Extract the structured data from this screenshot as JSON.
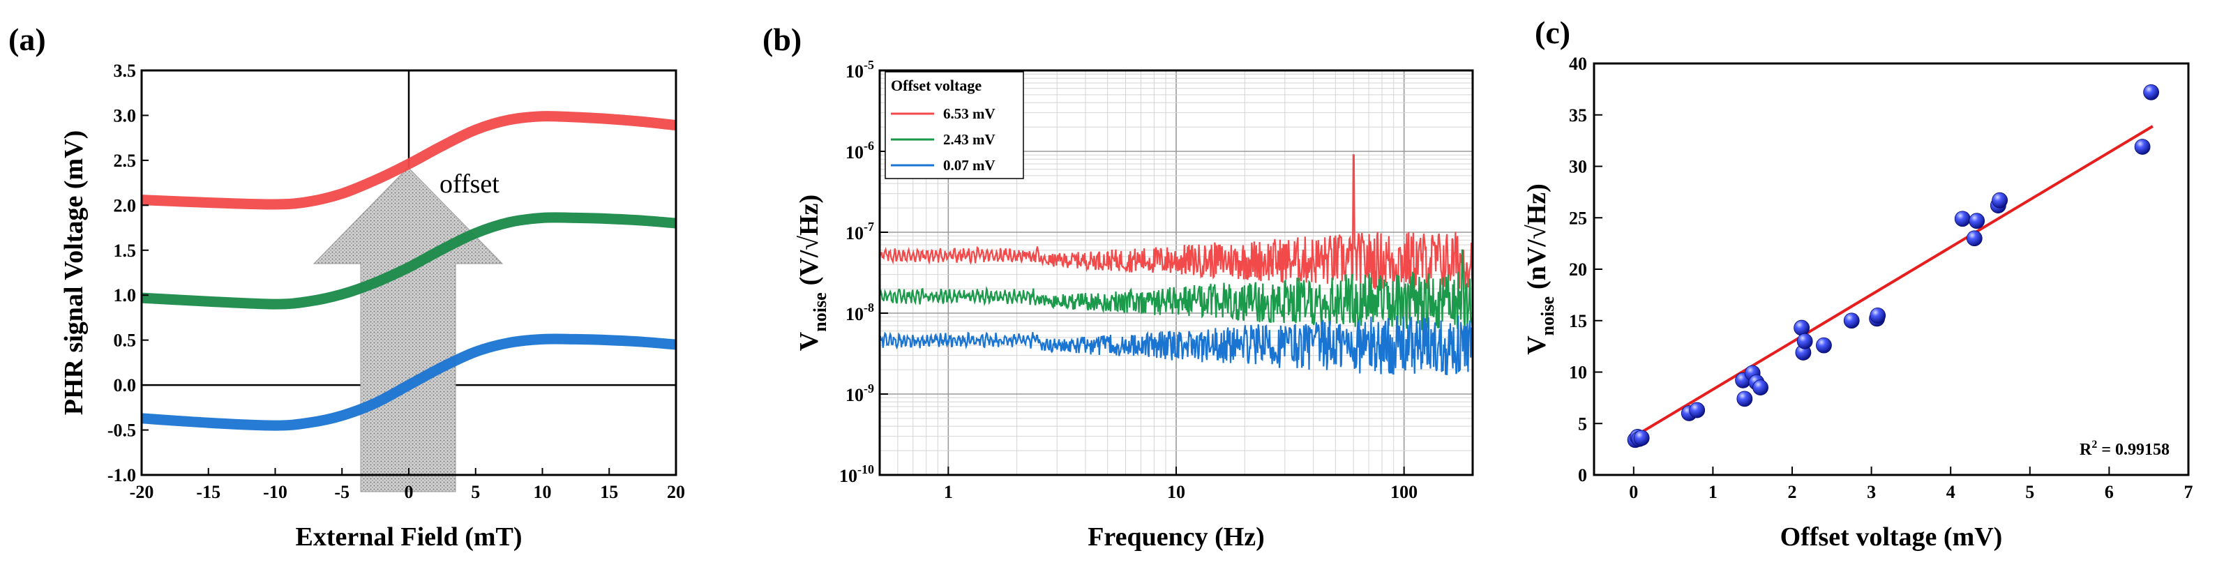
{
  "chart_data": [
    {
      "panel": "(a)",
      "type": "line",
      "xlabel": "External Field (mT)",
      "ylabel": "PHR signal Voltage (mV)",
      "xlim": [
        -20,
        20
      ],
      "ylim": [
        -1.0,
        3.5
      ],
      "xticks": [
        "-20",
        "-15",
        "-10",
        "-5",
        "0",
        "5",
        "10",
        "15",
        "20"
      ],
      "yticks": [
        "-1.0",
        "-0.5",
        "0.0",
        "0.5",
        "1.0",
        "1.5",
        "2.0",
        "2.5",
        "3.0",
        "3.5"
      ],
      "annotation": "offset",
      "series": [
        {
          "name": "red",
          "color": "#f24a4a",
          "x": [
            -20,
            -15,
            -10,
            -7.5,
            -5,
            -2.5,
            0,
            2.5,
            5,
            7.5,
            10,
            12.5,
            15,
            17.5,
            20
          ],
          "y": [
            2.06,
            2.03,
            2.01,
            2.04,
            2.13,
            2.28,
            2.46,
            2.66,
            2.84,
            2.95,
            2.99,
            2.98,
            2.96,
            2.93,
            2.89
          ]
        },
        {
          "name": "green",
          "color": "#1a8a4a",
          "x": [
            -20,
            -15,
            -10,
            -7.5,
            -5,
            -2.5,
            0,
            2.5,
            5,
            7.5,
            10,
            12.5,
            15,
            17.5,
            20
          ],
          "y": [
            0.97,
            0.93,
            0.9,
            0.93,
            1.01,
            1.14,
            1.31,
            1.51,
            1.69,
            1.81,
            1.86,
            1.86,
            1.85,
            1.83,
            1.8
          ]
        },
        {
          "name": "blue",
          "color": "#1a75d2",
          "x": [
            -20,
            -15,
            -10,
            -7.5,
            -5,
            -2.5,
            0,
            2.5,
            5,
            7.5,
            10,
            12.5,
            15,
            17.5,
            20
          ],
          "y": [
            -0.37,
            -0.42,
            -0.45,
            -0.42,
            -0.34,
            -0.2,
            0.0,
            0.2,
            0.37,
            0.47,
            0.51,
            0.51,
            0.5,
            0.48,
            0.45
          ]
        }
      ]
    },
    {
      "panel": "(b)",
      "type": "line",
      "xscale": "log",
      "yscale": "log",
      "xlabel": "Frequency (Hz)",
      "ylabel_main": "V",
      "ylabel_sub": "noise",
      "ylabel_unit": "(V/√Hz)",
      "xlim": [
        0.5,
        200
      ],
      "ylim": [
        1e-10,
        1e-05
      ],
      "xticks": [
        "1",
        "10",
        "100"
      ],
      "ytick_base": "10",
      "ytick_exps": [
        "-10",
        "-9",
        "-8",
        "-7",
        "-6",
        "-5"
      ],
      "legend_title": "Offset voltage",
      "series": [
        {
          "name": "6.53 mV",
          "color": "#f24a4a",
          "level": 4.5e-08,
          "spike_freq": 60,
          "spike_value": 9e-07
        },
        {
          "name": "2.43 mV",
          "color": "#1a9a4a",
          "level": 1.4e-08,
          "spike_freq": 180,
          "spike_value": 6e-08
        },
        {
          "name": "0.07 mV",
          "color": "#1a75d2",
          "level": 4e-09,
          "spike_freq": 0,
          "spike_value": 0
        }
      ]
    },
    {
      "panel": "(c)",
      "type": "scatter",
      "xlabel": "Offset voltage (mV)",
      "ylabel_main": "V",
      "ylabel_sub": "noise",
      "ylabel_unit": "(nV/√Hz)",
      "xlim": [
        -0.5,
        7
      ],
      "ylim": [
        0,
        40
      ],
      "xticks": [
        "0",
        "1",
        "2",
        "3",
        "4",
        "5",
        "6",
        "7"
      ],
      "yticks": [
        "0",
        "5",
        "10",
        "15",
        "20",
        "25",
        "30",
        "35",
        "40"
      ],
      "r2_prefix": "R",
      "r2_sup": "2",
      "r2_value": " = 0.99158",
      "fit": {
        "x": [
          0,
          6.55
        ],
        "y": [
          3.7,
          33.9
        ],
        "color": "#e61e1e"
      },
      "points": {
        "color": "#2233dd",
        "x": [
          0.02,
          0.05,
          0.07,
          0.1,
          0.7,
          0.8,
          1.38,
          1.4,
          1.5,
          1.55,
          1.6,
          2.12,
          2.14,
          2.16,
          2.4,
          2.75,
          3.07,
          3.08,
          4.15,
          4.3,
          4.33,
          4.6,
          4.62,
          6.42,
          6.53
        ],
        "y": [
          3.4,
          3.7,
          3.5,
          3.6,
          6.0,
          6.3,
          9.2,
          7.4,
          9.9,
          9.0,
          8.5,
          14.3,
          11.9,
          13.0,
          12.6,
          15.0,
          15.2,
          15.5,
          24.9,
          23.0,
          24.7,
          26.2,
          26.7,
          31.9,
          37.2
        ]
      }
    }
  ]
}
